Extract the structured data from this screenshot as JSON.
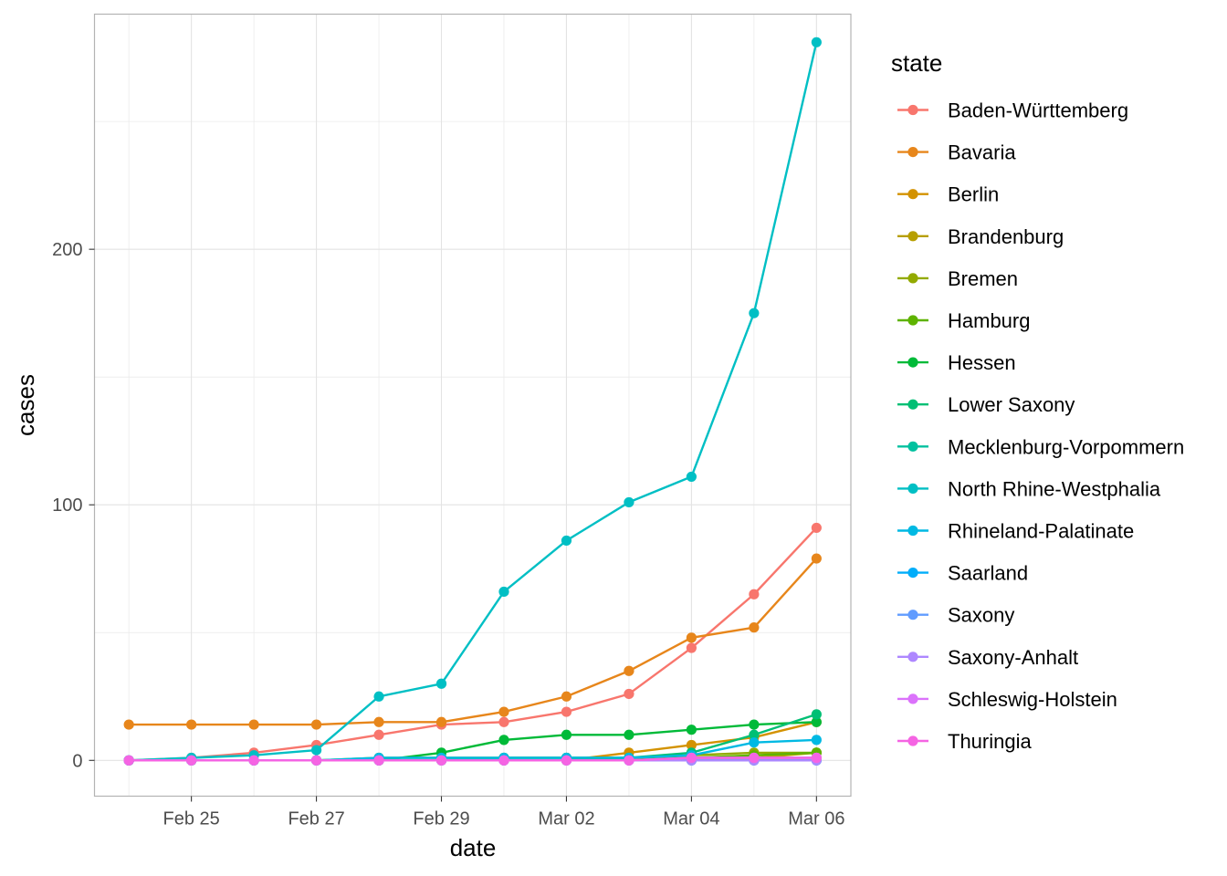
{
  "chart_data": {
    "type": "line",
    "xlabel": "date",
    "ylabel": "cases",
    "legend_title": "state",
    "legend_position": "right",
    "grid": true,
    "x": [
      "2020-02-24",
      "2020-02-25",
      "2020-02-26",
      "2020-02-27",
      "2020-02-28",
      "2020-02-29",
      "2020-03-01",
      "2020-03-02",
      "2020-03-03",
      "2020-03-04",
      "2020-03-05",
      "2020-03-06"
    ],
    "x_ticks": [
      "2020-02-25",
      "2020-02-27",
      "2020-02-29",
      "2020-03-02",
      "2020-03-04",
      "2020-03-06"
    ],
    "x_tick_labels": [
      "Feb 25",
      "Feb 27",
      "Feb 29",
      "Mar 02",
      "Mar 04",
      "Mar 06"
    ],
    "y_ticks": [
      0,
      100,
      200
    ],
    "y_tick_labels": [
      "0",
      "100",
      "200"
    ],
    "ylim": [
      -14,
      292
    ],
    "series": [
      {
        "name": "Baden-Württemberg",
        "color": "#F8766D",
        "values": [
          0,
          1,
          3,
          6,
          10,
          14,
          15,
          19,
          26,
          44,
          65,
          91
        ]
      },
      {
        "name": "Bavaria",
        "color": "#E7861B",
        "values": [
          14,
          14,
          14,
          14,
          15,
          15,
          19,
          25,
          35,
          48,
          52,
          79
        ]
      },
      {
        "name": "Berlin",
        "color": "#D39200",
        "values": [
          0,
          0,
          0,
          0,
          0,
          0,
          0,
          0,
          3,
          6,
          9,
          15
        ]
      },
      {
        "name": "Brandenburg",
        "color": "#B79F00",
        "values": [
          0,
          0,
          0,
          0,
          0,
          0,
          0,
          0,
          1,
          1,
          1,
          3
        ]
      },
      {
        "name": "Bremen",
        "color": "#93AA00",
        "values": [
          0,
          0,
          0,
          0,
          0,
          0,
          0,
          0,
          1,
          2,
          3,
          3
        ]
      },
      {
        "name": "Hamburg",
        "color": "#5EB300",
        "values": [
          0,
          0,
          0,
          0,
          1,
          1,
          1,
          1,
          1,
          1,
          2,
          3
        ]
      },
      {
        "name": "Hessen",
        "color": "#00BA38",
        "values": [
          0,
          0,
          0,
          0,
          0,
          3,
          8,
          10,
          10,
          12,
          14,
          15
        ]
      },
      {
        "name": "Lower Saxony",
        "color": "#00BF74",
        "values": [
          0,
          0,
          0,
          0,
          0,
          0,
          1,
          1,
          1,
          3,
          10,
          18
        ]
      },
      {
        "name": "Mecklenburg-Vorpommern",
        "color": "#00C19F",
        "values": [
          0,
          0,
          0,
          0,
          0,
          0,
          0,
          0,
          0,
          0,
          0,
          0
        ]
      },
      {
        "name": "North Rhine-Westphalia",
        "color": "#00BFC4",
        "values": [
          0,
          1,
          2,
          4,
          25,
          30,
          66,
          86,
          101,
          111,
          175,
          281
        ]
      },
      {
        "name": "Rhineland-Palatinate",
        "color": "#00B9E3",
        "values": [
          0,
          0,
          0,
          0,
          1,
          1,
          1,
          1,
          1,
          2,
          7,
          8
        ]
      },
      {
        "name": "Saarland",
        "color": "#00ADFA",
        "values": [
          0,
          0,
          0,
          0,
          0,
          0,
          0,
          0,
          0,
          0,
          0,
          0
        ]
      },
      {
        "name": "Saxony",
        "color": "#619CFF",
        "values": [
          0,
          0,
          0,
          0,
          0,
          0,
          0,
          0,
          0,
          1,
          1,
          1
        ]
      },
      {
        "name": "Saxony-Anhalt",
        "color": "#AE87FF",
        "values": [
          0,
          0,
          0,
          0,
          0,
          0,
          0,
          0,
          0,
          0,
          0,
          0
        ]
      },
      {
        "name": "Schleswig-Holstein",
        "color": "#DB72FB",
        "values": [
          0,
          0,
          0,
          0,
          0,
          0,
          0,
          0,
          0,
          1,
          1,
          1
        ]
      },
      {
        "name": "Thuringia",
        "color": "#F564E3",
        "values": [
          0,
          0,
          0,
          0,
          0,
          0,
          0,
          0,
          0,
          1,
          1,
          1
        ]
      }
    ]
  }
}
